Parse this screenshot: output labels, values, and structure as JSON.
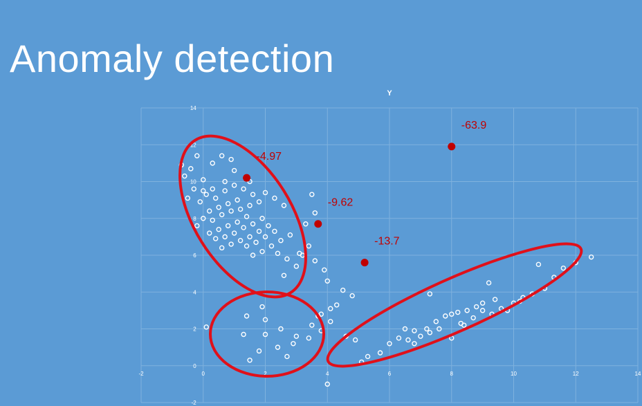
{
  "slide": {
    "title": "Anomaly detection"
  },
  "colors": {
    "background": "#5b9bd5",
    "points": "#ffffff",
    "anomaly": "#c00000",
    "cluster_outline": "#e0101a",
    "grid": "#7fb2de"
  },
  "chart_data": {
    "type": "scatter",
    "title": "Y",
    "xlabel": "",
    "ylabel": "",
    "xlim": [
      -2,
      14
    ],
    "ylim": [
      -2,
      14
    ],
    "x_ticks": [
      -2,
      0,
      2,
      4,
      6,
      8,
      10,
      12,
      14
    ],
    "y_ticks": [
      -2,
      0,
      2,
      4,
      6,
      8,
      10,
      12,
      14
    ],
    "grid": true,
    "points": [
      {
        "x": -0.7,
        "y": 10.9
      },
      {
        "x": -0.6,
        "y": 10.3
      },
      {
        "x": -0.4,
        "y": 10.7
      },
      {
        "x": -0.2,
        "y": 11.4
      },
      {
        "x": 0.0,
        "y": 10.1
      },
      {
        "x": 0.3,
        "y": 11.0
      },
      {
        "x": 0.6,
        "y": 11.4
      },
      {
        "x": 0.9,
        "y": 11.2
      },
      {
        "x": 1.0,
        "y": 10.6
      },
      {
        "x": 0.7,
        "y": 10.0
      },
      {
        "x": 0.3,
        "y": 9.6
      },
      {
        "x": -0.3,
        "y": 9.6
      },
      {
        "x": -0.5,
        "y": 9.1
      },
      {
        "x": 0.1,
        "y": 9.3
      },
      {
        "x": 0.4,
        "y": 9.1
      },
      {
        "x": 0.7,
        "y": 9.5
      },
      {
        "x": 1.0,
        "y": 9.8
      },
      {
        "x": 1.3,
        "y": 9.6
      },
      {
        "x": 1.6,
        "y": 9.3
      },
      {
        "x": 1.1,
        "y": 9.0
      },
      {
        "x": 0.8,
        "y": 8.8
      },
      {
        "x": 0.5,
        "y": 8.6
      },
      {
        "x": 0.2,
        "y": 8.4
      },
      {
        "x": -0.1,
        "y": 8.9
      },
      {
        "x": 0.0,
        "y": 8.0
      },
      {
        "x": 0.3,
        "y": 7.9
      },
      {
        "x": 0.6,
        "y": 8.2
      },
      {
        "x": 0.9,
        "y": 8.4
      },
      {
        "x": 1.2,
        "y": 8.5
      },
      {
        "x": 1.5,
        "y": 8.7
      },
      {
        "x": 1.8,
        "y": 8.9
      },
      {
        "x": 1.4,
        "y": 8.1
      },
      {
        "x": 1.1,
        "y": 7.8
      },
      {
        "x": 0.8,
        "y": 7.6
      },
      {
        "x": 0.5,
        "y": 7.4
      },
      {
        "x": 0.2,
        "y": 7.2
      },
      {
        "x": -0.2,
        "y": 7.6
      },
      {
        "x": 0.4,
        "y": 6.9
      },
      {
        "x": 0.7,
        "y": 7.0
      },
      {
        "x": 1.0,
        "y": 7.2
      },
      {
        "x": 1.3,
        "y": 7.5
      },
      {
        "x": 1.6,
        "y": 7.7
      },
      {
        "x": 1.9,
        "y": 8.0
      },
      {
        "x": 2.1,
        "y": 7.6
      },
      {
        "x": 1.8,
        "y": 7.3
      },
      {
        "x": 1.5,
        "y": 7.0
      },
      {
        "x": 1.2,
        "y": 6.8
      },
      {
        "x": 0.9,
        "y": 6.6
      },
      {
        "x": 0.6,
        "y": 6.4
      },
      {
        "x": 1.4,
        "y": 6.5
      },
      {
        "x": 1.7,
        "y": 6.7
      },
      {
        "x": 2.0,
        "y": 7.0
      },
      {
        "x": 2.3,
        "y": 7.3
      },
      {
        "x": 2.2,
        "y": 6.5
      },
      {
        "x": 1.9,
        "y": 6.2
      },
      {
        "x": 1.6,
        "y": 6.0
      },
      {
        "x": 2.5,
        "y": 6.8
      },
      {
        "x": 2.8,
        "y": 7.1
      },
      {
        "x": 2.4,
        "y": 6.1
      },
      {
        "x": 2.7,
        "y": 5.8
      },
      {
        "x": 3.1,
        "y": 6.1
      },
      {
        "x": 3.4,
        "y": 6.5
      },
      {
        "x": 3.0,
        "y": 5.4
      },
      {
        "x": 3.6,
        "y": 5.7
      },
      {
        "x": 3.3,
        "y": 7.7
      },
      {
        "x": 3.6,
        "y": 8.3
      },
      {
        "x": 2.6,
        "y": 8.7
      },
      {
        "x": 2.3,
        "y": 9.1
      },
      {
        "x": 2.0,
        "y": 9.4
      },
      {
        "x": 1.5,
        "y": 10.0
      },
      {
        "x": 3.5,
        "y": 9.3
      },
      {
        "x": 0.0,
        "y": 9.5
      },
      {
        "x": 3.9,
        "y": 5.2
      },
      {
        "x": 4.0,
        "y": 4.6
      },
      {
        "x": 4.5,
        "y": 4.1
      },
      {
        "x": 4.8,
        "y": 3.8
      },
      {
        "x": 2.6,
        "y": 4.9
      },
      {
        "x": 3.2,
        "y": 6.0
      },
      {
        "x": 1.4,
        "y": 2.7
      },
      {
        "x": 2.0,
        "y": 2.5
      },
      {
        "x": 2.5,
        "y": 2.0
      },
      {
        "x": 3.0,
        "y": 1.6
      },
      {
        "x": 3.5,
        "y": 2.2
      },
      {
        "x": 3.8,
        "y": 2.8
      },
      {
        "x": 4.1,
        "y": 3.1
      },
      {
        "x": 4.3,
        "y": 3.3
      },
      {
        "x": 4.1,
        "y": 2.4
      },
      {
        "x": 3.8,
        "y": 1.9
      },
      {
        "x": 3.4,
        "y": 1.5
      },
      {
        "x": 2.9,
        "y": 1.2
      },
      {
        "x": 2.4,
        "y": 1.0
      },
      {
        "x": 1.8,
        "y": 0.8
      },
      {
        "x": 1.5,
        "y": 0.3
      },
      {
        "x": 2.0,
        "y": 1.7
      },
      {
        "x": 1.3,
        "y": 1.7
      },
      {
        "x": 3.7,
        "y": 2.7
      },
      {
        "x": 4.6,
        "y": 1.6
      },
      {
        "x": 4.9,
        "y": 1.4
      },
      {
        "x": 4.0,
        "y": -1.0
      },
      {
        "x": 2.7,
        "y": 0.5
      },
      {
        "x": 0.1,
        "y": 2.1
      },
      {
        "x": 1.9,
        "y": 3.2
      },
      {
        "x": 5.1,
        "y": 0.2
      },
      {
        "x": 5.3,
        "y": 0.5
      },
      {
        "x": 5.7,
        "y": 0.7
      },
      {
        "x": 6.0,
        "y": 1.2
      },
      {
        "x": 6.3,
        "y": 1.5
      },
      {
        "x": 6.6,
        "y": 1.4
      },
      {
        "x": 7.0,
        "y": 1.6
      },
      {
        "x": 7.3,
        "y": 1.8
      },
      {
        "x": 7.6,
        "y": 2.0
      },
      {
        "x": 8.0,
        "y": 1.5
      },
      {
        "x": 8.3,
        "y": 2.3
      },
      {
        "x": 8.7,
        "y": 2.6
      },
      {
        "x": 9.0,
        "y": 3.0
      },
      {
        "x": 9.3,
        "y": 2.8
      },
      {
        "x": 9.6,
        "y": 3.1
      },
      {
        "x": 10.0,
        "y": 3.4
      },
      {
        "x": 10.3,
        "y": 3.7
      },
      {
        "x": 10.6,
        "y": 3.9
      },
      {
        "x": 11.0,
        "y": 4.2
      },
      {
        "x": 11.3,
        "y": 4.8
      },
      {
        "x": 11.6,
        "y": 5.3
      },
      {
        "x": 12.0,
        "y": 5.6
      },
      {
        "x": 12.5,
        "y": 5.9
      },
      {
        "x": 8.0,
        "y": 2.8
      },
      {
        "x": 8.4,
        "y": 2.2
      },
      {
        "x": 7.8,
        "y": 2.7
      },
      {
        "x": 7.5,
        "y": 2.4
      },
      {
        "x": 7.2,
        "y": 2.0
      },
      {
        "x": 6.8,
        "y": 1.9
      },
      {
        "x": 6.5,
        "y": 2.0
      },
      {
        "x": 9.0,
        "y": 3.4
      },
      {
        "x": 9.4,
        "y": 3.6
      },
      {
        "x": 8.8,
        "y": 3.2
      },
      {
        "x": 8.5,
        "y": 3.0
      },
      {
        "x": 8.2,
        "y": 2.9
      },
      {
        "x": 9.8,
        "y": 3.0
      },
      {
        "x": 10.2,
        "y": 3.5
      },
      {
        "x": 9.2,
        "y": 4.5
      },
      {
        "x": 7.3,
        "y": 3.9
      },
      {
        "x": 6.8,
        "y": 1.2
      },
      {
        "x": 10.8,
        "y": 5.5
      }
    ],
    "anomalies": [
      {
        "x": 1.4,
        "y": 10.2,
        "label": "-4.97"
      },
      {
        "x": 3.7,
        "y": 7.7,
        "label": "-9.62"
      },
      {
        "x": 5.2,
        "y": 5.6,
        "label": "-13.7"
      },
      {
        "x": 8.0,
        "y": 11.9,
        "label": "-63.9"
      }
    ]
  }
}
